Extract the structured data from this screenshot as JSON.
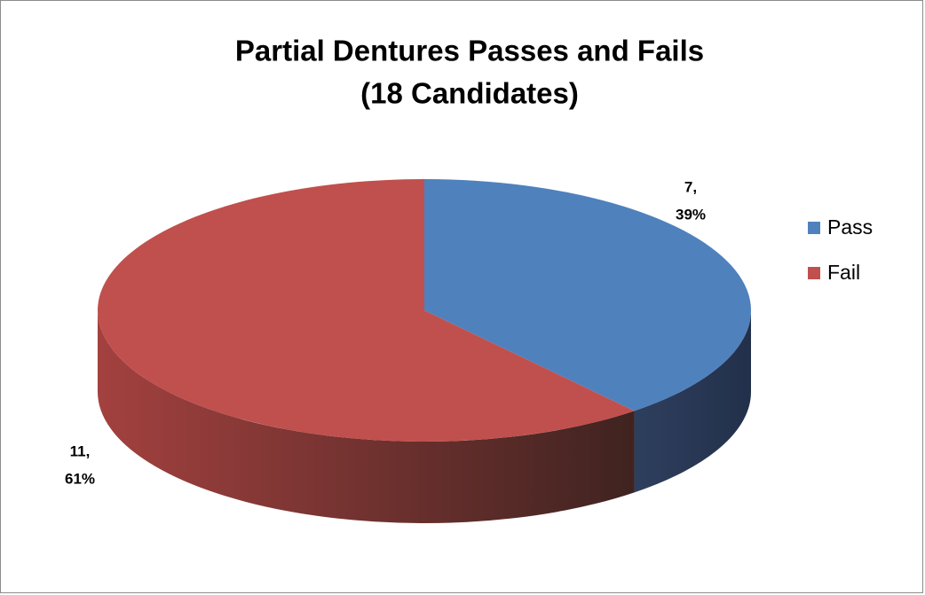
{
  "chart_data": {
    "type": "pie",
    "title": "Partial Dentures Passes and Fails",
    "subtitle": "(18 Candidates)",
    "categories": [
      "Pass",
      "Fail"
    ],
    "values": [
      7,
      11
    ],
    "value_labels": [
      "7,",
      "11,"
    ],
    "percents": [
      39,
      61
    ],
    "percent_labels": [
      "39%",
      "61%"
    ],
    "colors": [
      "#4f81bd",
      "#c0504d"
    ],
    "legend": "right"
  }
}
